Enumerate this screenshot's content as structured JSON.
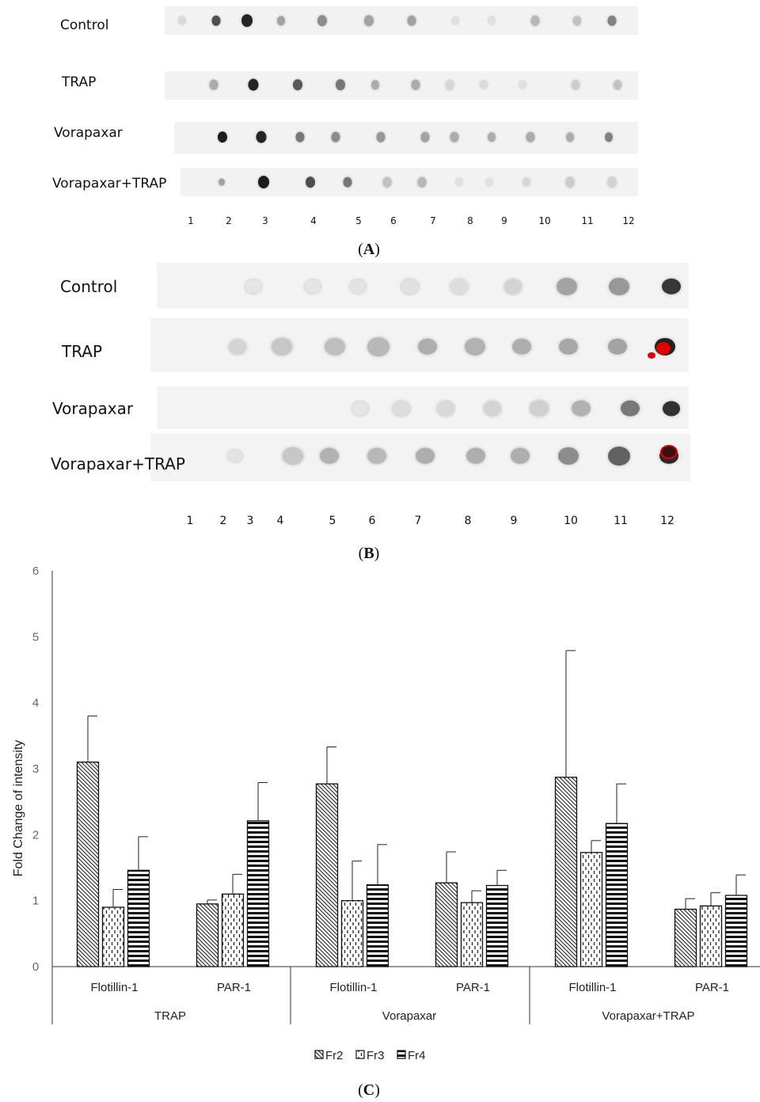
{
  "panel_a": {
    "rows": [
      "Control",
      "TRAP",
      "Vorapaxar",
      "Vorapaxar+TRAP"
    ],
    "lanes": [
      "1",
      "2",
      "3",
      "4",
      "5",
      "6",
      "7",
      "8",
      "9",
      "10",
      "11",
      "12"
    ],
    "caption_letter": "A"
  },
  "panel_b": {
    "rows": [
      "Control",
      "TRAP",
      "Vorapaxar",
      "Vorapaxar+TRAP"
    ],
    "lanes": [
      "1",
      "2",
      "3",
      "4",
      "5",
      "6",
      "7",
      "8",
      "9",
      "10",
      "11",
      "12"
    ],
    "caption_letter": "B"
  },
  "panel_c": {
    "caption_letter": "C"
  },
  "chart_data": {
    "type": "bar",
    "ylabel": "Fold Change of intensity",
    "ylim": [
      0,
      6
    ],
    "yticks": [
      0,
      1,
      2,
      3,
      4,
      5,
      6
    ],
    "groups": [
      {
        "name": "TRAP",
        "categories": [
          "Flotillin-1",
          "PAR-1"
        ]
      },
      {
        "name": "Vorapaxar",
        "categories": [
          "Flotillin-1",
          "PAR-1"
        ]
      },
      {
        "name": "Vorapaxar+TRAP",
        "categories": [
          "Flotillin-1",
          "PAR-1"
        ]
      }
    ],
    "series": [
      {
        "name": "Fr2",
        "pattern": "diagonal",
        "values": [
          3.1,
          0.95,
          2.77,
          1.27,
          2.87,
          0.87
        ],
        "errors": [
          0.7,
          0.06,
          0.56,
          0.47,
          1.92,
          0.16
        ]
      },
      {
        "name": "Fr3",
        "pattern": "dashed-vertical",
        "values": [
          0.9,
          1.1,
          1.0,
          0.97,
          1.73,
          0.92
        ],
        "errors": [
          0.27,
          0.3,
          0.6,
          0.18,
          0.18,
          0.2
        ]
      },
      {
        "name": "Fr4",
        "pattern": "horizontal",
        "values": [
          1.46,
          2.21,
          1.24,
          1.23,
          2.17,
          1.08
        ],
        "errors": [
          0.51,
          0.58,
          0.61,
          0.23,
          0.6,
          0.31
        ]
      }
    ],
    "legend_position": "bottom-center",
    "grid": false
  }
}
